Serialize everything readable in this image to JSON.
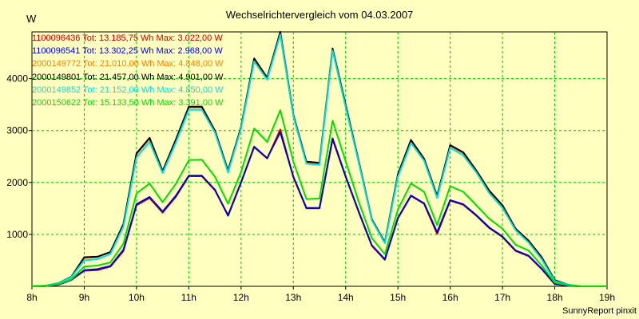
{
  "chart_data": {
    "type": "line",
    "title": "Wechselrichtervergleich vom 04.03.2007",
    "ylabel": "W",
    "xlabel": "",
    "footer": "SunnyReport pinxit",
    "x_ticks": [
      "8h",
      "9h",
      "10h",
      "11h",
      "12h",
      "13h",
      "14h",
      "15h",
      "16h",
      "17h",
      "18h",
      "19h"
    ],
    "y_ticks": [
      1000,
      2000,
      3000,
      4000
    ],
    "xlim": [
      8,
      19
    ],
    "ylim": [
      0,
      4900
    ],
    "grid": true,
    "legend_position": "top-left",
    "x": [
      8.0,
      8.25,
      8.5,
      8.75,
      9.0,
      9.25,
      9.5,
      9.75,
      10.0,
      10.25,
      10.5,
      10.75,
      11.0,
      11.25,
      11.5,
      11.75,
      12.0,
      12.25,
      12.5,
      12.75,
      13.0,
      13.25,
      13.5,
      13.75,
      14.0,
      14.25,
      14.5,
      14.75,
      15.0,
      15.25,
      15.5,
      15.75,
      16.0,
      16.25,
      16.5,
      16.75,
      17.0,
      17.25,
      17.5,
      17.75,
      18.0,
      18.25,
      18.5,
      18.75,
      19.0
    ],
    "series": [
      {
        "name": "1100096436 Tot: 13.185,75 Wh Max: 3.022,00 W",
        "color": "#cc0000",
        "values": [
          0,
          5,
          30,
          120,
          300,
          310,
          380,
          680,
          1560,
          1700,
          1420,
          1720,
          2120,
          2120,
          1850,
          1370,
          2000,
          2680,
          2460,
          3020,
          2100,
          1500,
          1500,
          2830,
          2110,
          1430,
          780,
          510,
          1310,
          1740,
          1590,
          1010,
          1650,
          1570,
          1360,
          1120,
          950,
          680,
          580,
          330,
          40,
          10,
          0,
          0,
          0
        ]
      },
      {
        "name": "1100096541 Tot: 13.302,25 Wh Max: 2.968,00 W",
        "color": "#0000cc",
        "values": [
          0,
          5,
          30,
          120,
          310,
          330,
          390,
          700,
          1580,
          1720,
          1440,
          1740,
          2130,
          2130,
          1860,
          1360,
          2000,
          2690,
          2470,
          2968,
          2110,
          1510,
          1510,
          2850,
          2120,
          1440,
          790,
          520,
          1320,
          1750,
          1600,
          1040,
          1660,
          1580,
          1370,
          1130,
          960,
          690,
          590,
          340,
          50,
          10,
          0,
          0,
          0
        ]
      },
      {
        "name": "2000149772 Tot: 21.010,00 Wh Max: 4.848,00 W",
        "color": "#ff8000",
        "values": [
          0,
          10,
          60,
          180,
          540,
          560,
          660,
          1180,
          2540,
          2840,
          2200,
          2800,
          3440,
          3440,
          2980,
          2210,
          3060,
          4370,
          4000,
          4848,
          3290,
          2380,
          2370,
          4560,
          3480,
          2400,
          1280,
          840,
          2140,
          2800,
          2440,
          1720,
          2700,
          2560,
          2220,
          1820,
          1540,
          1100,
          860,
          540,
          110,
          30,
          0,
          0,
          0
        ]
      },
      {
        "name": "2000149801 Tot: 21.457,00 Wh Max: 4.901,00 W",
        "color": "#000000",
        "values": [
          0,
          10,
          60,
          180,
          560,
          570,
          660,
          1200,
          2560,
          2860,
          2220,
          2820,
          3460,
          3460,
          3000,
          2230,
          3070,
          4390,
          4020,
          4901,
          3300,
          2400,
          2380,
          4580,
          3500,
          2410,
          1290,
          850,
          2160,
          2820,
          2460,
          1740,
          2720,
          2580,
          2230,
          1840,
          1560,
          1110,
          880,
          560,
          120,
          30,
          0,
          0,
          0
        ]
      },
      {
        "name": "2000149852 Tot: 21.152,00 Wh Max: 4.850,00 W",
        "color": "#00e0e0",
        "values": [
          0,
          10,
          60,
          170,
          500,
          520,
          620,
          1150,
          2480,
          2780,
          2180,
          2760,
          3400,
          3400,
          2960,
          2190,
          3040,
          4330,
          3980,
          4850,
          3270,
          2360,
          2340,
          4540,
          3450,
          2380,
          1270,
          830,
          2110,
          2760,
          2420,
          1700,
          2670,
          2520,
          2190,
          1790,
          1510,
          1080,
          840,
          520,
          100,
          30,
          0,
          0,
          0
        ]
      },
      {
        "name": "2000150622 Tot: 15.133,50 Wh Max: 3.391,00 W",
        "color": "#00dd00",
        "values": [
          0,
          5,
          40,
          130,
          380,
          400,
          460,
          820,
          1790,
          1980,
          1620,
          1970,
          2430,
          2440,
          2110,
          1590,
          2200,
          3040,
          2780,
          3391,
          2400,
          1680,
          1690,
          3190,
          2410,
          1630,
          930,
          620,
          1480,
          1980,
          1820,
          1180,
          1930,
          1820,
          1560,
          1300,
          1110,
          800,
          690,
          400,
          70,
          20,
          0,
          0,
          0
        ]
      }
    ]
  }
}
